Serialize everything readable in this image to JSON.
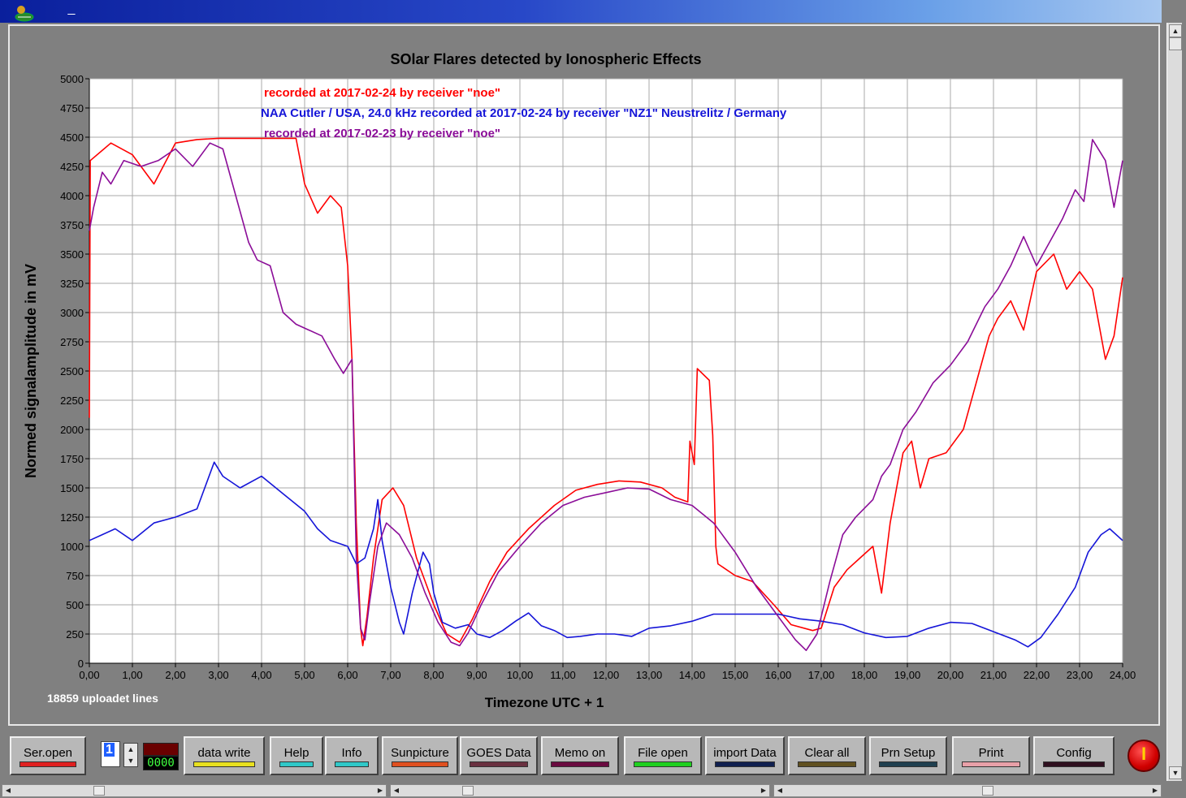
{
  "window": {
    "minimize_label": "_"
  },
  "colors": {
    "series1": "#ff0000",
    "series2": "#1515d8",
    "series3": "#8b0d98",
    "plot_bg": "#ffffff",
    "grid": "#a8a8a8"
  },
  "chart_data": {
    "type": "line",
    "title": "SOlar Flares detected by Ionospheric Effects",
    "xlabel": "Timezone UTC + 1",
    "ylabel": "Normed signalamplitude in mV",
    "xlim": [
      0,
      24
    ],
    "ylim": [
      0,
      5000
    ],
    "x_ticks": [
      "0,00",
      "1,00",
      "2,00",
      "3,00",
      "4,00",
      "5,00",
      "6,00",
      "7,00",
      "8,00",
      "9,00",
      "10,00",
      "11,00",
      "12,00",
      "13,00",
      "14,00",
      "15,00",
      "16,00",
      "17,00",
      "18,00",
      "19,00",
      "20,00",
      "21,00",
      "22,00",
      "23,00",
      "24,00"
    ],
    "y_ticks": [
      "0",
      "250",
      "500",
      "750",
      "1000",
      "1250",
      "1500",
      "1750",
      "2000",
      "2250",
      "2500",
      "2750",
      "3000",
      "3250",
      "3500",
      "3750",
      "4000",
      "4250",
      "4500",
      "4750",
      "5000"
    ],
    "grid": true,
    "legend": [
      {
        "text": "recorded at 2017-02-24 by receiver \"noe\"",
        "color": "#ff0000"
      },
      {
        "text": "NAA Cutler / USA, 24.0 kHz  recorded at 2017-02-24 by receiver \"NZ1\" Neustrelitz / Germany",
        "color": "#1515d8"
      },
      {
        "text": "recorded at 2017-02-23 by receiver \"noe\"",
        "color": "#8b0d98"
      }
    ],
    "footnote": "18859 uploadet lines",
    "series": [
      {
        "color": "#ff0000",
        "points": [
          [
            0,
            2100
          ],
          [
            0.02,
            4300
          ],
          [
            0.5,
            4450
          ],
          [
            1.0,
            4350
          ],
          [
            1.5,
            4100
          ],
          [
            2.0,
            4450
          ],
          [
            2.5,
            4480
          ],
          [
            3.0,
            4490
          ],
          [
            4.0,
            4490
          ],
          [
            4.8,
            4490
          ],
          [
            4.9,
            4300
          ],
          [
            5.0,
            4100
          ],
          [
            5.3,
            3850
          ],
          [
            5.6,
            4000
          ],
          [
            5.85,
            3900
          ],
          [
            6.0,
            3400
          ],
          [
            6.1,
            2600
          ],
          [
            6.2,
            1200
          ],
          [
            6.3,
            300
          ],
          [
            6.35,
            150
          ],
          [
            6.45,
            400
          ],
          [
            6.6,
            900
          ],
          [
            6.8,
            1400
          ],
          [
            7.05,
            1500
          ],
          [
            7.3,
            1350
          ],
          [
            7.6,
            900
          ],
          [
            8.0,
            500
          ],
          [
            8.3,
            250
          ],
          [
            8.6,
            180
          ],
          [
            8.9,
            380
          ],
          [
            9.3,
            700
          ],
          [
            9.7,
            950
          ],
          [
            10.2,
            1150
          ],
          [
            10.8,
            1350
          ],
          [
            11.3,
            1480
          ],
          [
            11.8,
            1530
          ],
          [
            12.3,
            1560
          ],
          [
            12.8,
            1550
          ],
          [
            13.3,
            1500
          ],
          [
            13.6,
            1420
          ],
          [
            13.9,
            1380
          ],
          [
            13.95,
            1900
          ],
          [
            14.05,
            1700
          ],
          [
            14.12,
            2520
          ],
          [
            14.4,
            2420
          ],
          [
            14.48,
            1950
          ],
          [
            14.55,
            1000
          ],
          [
            14.6,
            850
          ],
          [
            15.0,
            750
          ],
          [
            15.4,
            700
          ],
          [
            15.9,
            500
          ],
          [
            16.3,
            330
          ],
          [
            16.8,
            280
          ],
          [
            17.0,
            300
          ],
          [
            17.3,
            650
          ],
          [
            17.6,
            800
          ],
          [
            17.9,
            900
          ],
          [
            18.2,
            1000
          ],
          [
            18.3,
            800
          ],
          [
            18.4,
            600
          ],
          [
            18.6,
            1200
          ],
          [
            18.9,
            1800
          ],
          [
            19.1,
            1900
          ],
          [
            19.3,
            1500
          ],
          [
            19.5,
            1750
          ],
          [
            19.9,
            1800
          ],
          [
            20.3,
            2000
          ],
          [
            20.6,
            2400
          ],
          [
            20.9,
            2800
          ],
          [
            21.1,
            2950
          ],
          [
            21.4,
            3100
          ],
          [
            21.7,
            2850
          ],
          [
            22.0,
            3350
          ],
          [
            22.4,
            3500
          ],
          [
            22.7,
            3200
          ],
          [
            23.0,
            3350
          ],
          [
            23.3,
            3200
          ],
          [
            23.6,
            2600
          ],
          [
            23.8,
            2800
          ],
          [
            24.0,
            3300
          ]
        ]
      },
      {
        "color": "#1515d8",
        "points": [
          [
            0,
            1050
          ],
          [
            0.3,
            1100
          ],
          [
            0.6,
            1150
          ],
          [
            1.0,
            1050
          ],
          [
            1.5,
            1200
          ],
          [
            2.0,
            1250
          ],
          [
            2.5,
            1320
          ],
          [
            2.9,
            1720
          ],
          [
            3.1,
            1600
          ],
          [
            3.5,
            1500
          ],
          [
            4.0,
            1600
          ],
          [
            4.5,
            1450
          ],
          [
            5.0,
            1300
          ],
          [
            5.3,
            1150
          ],
          [
            5.6,
            1050
          ],
          [
            6.0,
            1000
          ],
          [
            6.2,
            850
          ],
          [
            6.4,
            900
          ],
          [
            6.6,
            1150
          ],
          [
            6.7,
            1400
          ],
          [
            6.8,
            1050
          ],
          [
            7.0,
            650
          ],
          [
            7.2,
            350
          ],
          [
            7.3,
            250
          ],
          [
            7.5,
            600
          ],
          [
            7.75,
            950
          ],
          [
            7.9,
            850
          ],
          [
            8.0,
            600
          ],
          [
            8.2,
            350
          ],
          [
            8.5,
            300
          ],
          [
            8.8,
            330
          ],
          [
            9.0,
            250
          ],
          [
            9.3,
            220
          ],
          [
            9.6,
            280
          ],
          [
            9.9,
            360
          ],
          [
            10.2,
            430
          ],
          [
            10.5,
            320
          ],
          [
            10.8,
            280
          ],
          [
            11.1,
            220
          ],
          [
            11.4,
            230
          ],
          [
            11.8,
            250
          ],
          [
            12.2,
            250
          ],
          [
            12.6,
            230
          ],
          [
            13.0,
            300
          ],
          [
            13.5,
            320
          ],
          [
            14.0,
            360
          ],
          [
            14.5,
            420
          ],
          [
            15.0,
            420
          ],
          [
            15.5,
            420
          ],
          [
            16.0,
            420
          ],
          [
            16.5,
            380
          ],
          [
            17.0,
            360
          ],
          [
            17.5,
            330
          ],
          [
            18.0,
            260
          ],
          [
            18.5,
            220
          ],
          [
            19.0,
            230
          ],
          [
            19.5,
            300
          ],
          [
            20.0,
            350
          ],
          [
            20.5,
            340
          ],
          [
            21.0,
            270
          ],
          [
            21.5,
            200
          ],
          [
            21.8,
            140
          ],
          [
            22.1,
            220
          ],
          [
            22.5,
            420
          ],
          [
            22.9,
            650
          ],
          [
            23.2,
            950
          ],
          [
            23.5,
            1100
          ],
          [
            23.7,
            1150
          ],
          [
            24.0,
            1050
          ]
        ]
      },
      {
        "color": "#8b0d98",
        "points": [
          [
            0,
            3700
          ],
          [
            0.1,
            3900
          ],
          [
            0.3,
            4200
          ],
          [
            0.5,
            4100
          ],
          [
            0.8,
            4300
          ],
          [
            1.2,
            4250
          ],
          [
            1.6,
            4300
          ],
          [
            2.0,
            4400
          ],
          [
            2.4,
            4250
          ],
          [
            2.8,
            4450
          ],
          [
            3.1,
            4400
          ],
          [
            3.4,
            4000
          ],
          [
            3.7,
            3600
          ],
          [
            3.9,
            3450
          ],
          [
            4.2,
            3400
          ],
          [
            4.5,
            3000
          ],
          [
            4.8,
            2900
          ],
          [
            5.1,
            2850
          ],
          [
            5.4,
            2800
          ],
          [
            5.7,
            2600
          ],
          [
            5.9,
            2480
          ],
          [
            6.1,
            2600
          ],
          [
            6.2,
            900
          ],
          [
            6.3,
            300
          ],
          [
            6.4,
            200
          ],
          [
            6.5,
            500
          ],
          [
            6.7,
            1000
          ],
          [
            6.9,
            1200
          ],
          [
            7.2,
            1100
          ],
          [
            7.5,
            900
          ],
          [
            7.8,
            600
          ],
          [
            8.1,
            350
          ],
          [
            8.4,
            180
          ],
          [
            8.6,
            150
          ],
          [
            8.8,
            260
          ],
          [
            9.1,
            500
          ],
          [
            9.5,
            780
          ],
          [
            10.0,
            1000
          ],
          [
            10.5,
            1200
          ],
          [
            11.0,
            1350
          ],
          [
            11.5,
            1420
          ],
          [
            12.0,
            1460
          ],
          [
            12.5,
            1500
          ],
          [
            13.0,
            1490
          ],
          [
            13.5,
            1400
          ],
          [
            14.0,
            1350
          ],
          [
            14.5,
            1200
          ],
          [
            15.0,
            950
          ],
          [
            15.5,
            650
          ],
          [
            16.0,
            400
          ],
          [
            16.4,
            200
          ],
          [
            16.65,
            110
          ],
          [
            16.9,
            250
          ],
          [
            17.2,
            700
          ],
          [
            17.5,
            1100
          ],
          [
            17.8,
            1250
          ],
          [
            18.2,
            1400
          ],
          [
            18.4,
            1600
          ],
          [
            18.6,
            1700
          ],
          [
            18.9,
            2000
          ],
          [
            19.2,
            2150
          ],
          [
            19.6,
            2400
          ],
          [
            20.0,
            2550
          ],
          [
            20.4,
            2750
          ],
          [
            20.8,
            3050
          ],
          [
            21.1,
            3200
          ],
          [
            21.4,
            3400
          ],
          [
            21.7,
            3650
          ],
          [
            22.0,
            3400
          ],
          [
            22.3,
            3600
          ],
          [
            22.6,
            3800
          ],
          [
            22.9,
            4050
          ],
          [
            23.1,
            3950
          ],
          [
            23.3,
            4480
          ],
          [
            23.6,
            4300
          ],
          [
            23.8,
            3900
          ],
          [
            24.0,
            4300
          ]
        ]
      }
    ]
  },
  "toolbar": {
    "ser_open": "Ser.open",
    "port_value": "1",
    "counter_value": "0000",
    "data_write": "data write",
    "help": "Help",
    "info": "Info",
    "sunpicture": "Sunpicture",
    "goes_data": "GOES Data",
    "memo_on": "Memo on",
    "file_open": "File open",
    "import_data": "import Data",
    "clear_all": "Clear all",
    "prn_setup": "Prn Setup",
    "print": "Print",
    "config": "Config",
    "stop_symbol": "I"
  }
}
